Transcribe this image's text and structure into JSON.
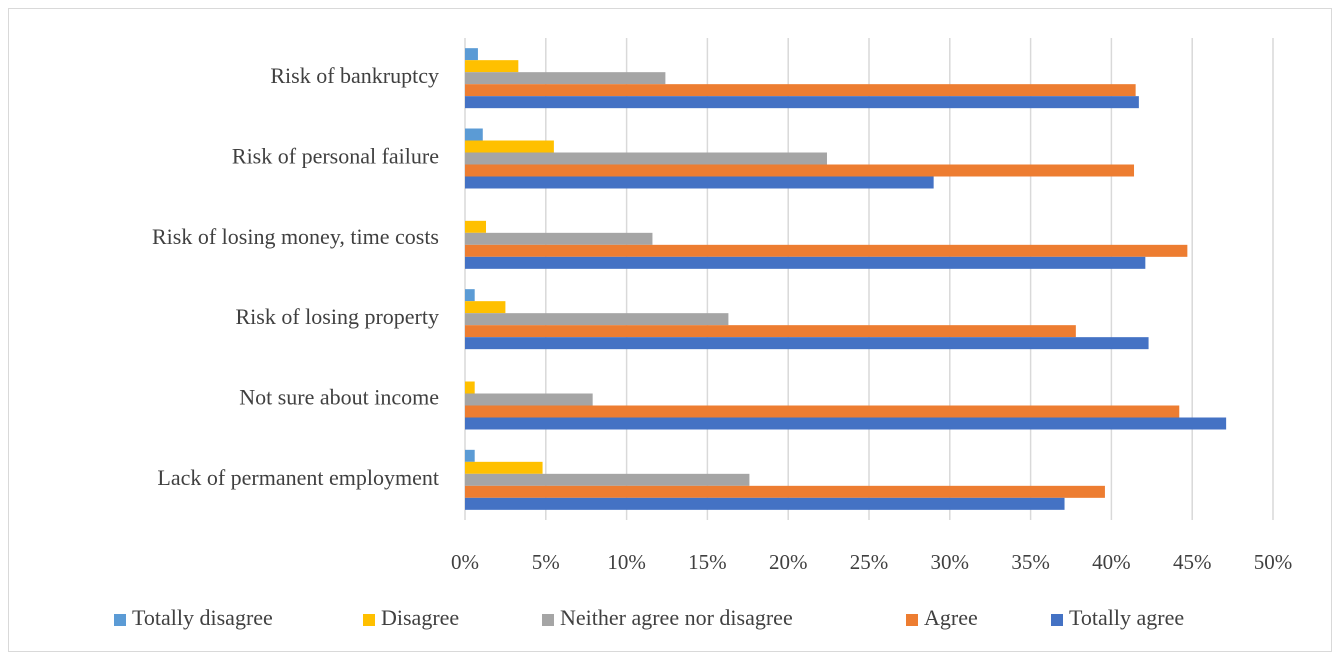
{
  "chart_data": {
    "type": "hbar",
    "categories": [
      "Risk of bankruptcy",
      "Risk of personal failure",
      "Risk of losing money, time costs",
      "Risk of losing property",
      "Not sure about income",
      "Lack of permanent employment"
    ],
    "series": [
      {
        "name": "Totally disagree",
        "color": "#5b9bd5",
        "values": [
          0.8,
          1.1,
          0,
          0.6,
          0,
          0.6
        ]
      },
      {
        "name": "Disagree",
        "color": "#ffc000",
        "values": [
          3.3,
          5.5,
          1.3,
          2.5,
          0.6,
          4.8
        ]
      },
      {
        "name": "Neither agree nor disagree",
        "color": "#a5a5a5",
        "values": [
          12.4,
          22.4,
          11.6,
          16.3,
          7.9,
          17.6
        ]
      },
      {
        "name": "Agree",
        "color": "#ed7d31",
        "values": [
          41.5,
          41.4,
          44.7,
          37.8,
          44.2,
          39.6
        ]
      },
      {
        "name": "Totally agree",
        "color": "#4472c4",
        "values": [
          41.7,
          29.0,
          42.1,
          42.3,
          47.1,
          37.1
        ]
      }
    ],
    "xlim": [
      0,
      50
    ],
    "xticks": [
      {
        "value": 0,
        "label": "0%"
      },
      {
        "value": 5,
        "label": "5%"
      },
      {
        "value": 10,
        "label": "10%"
      },
      {
        "value": 15,
        "label": "15%"
      },
      {
        "value": 20,
        "label": "20%"
      },
      {
        "value": 25,
        "label": "25%"
      },
      {
        "value": 30,
        "label": "30%"
      },
      {
        "value": 35,
        "label": "35%"
      },
      {
        "value": 40,
        "label": "40%"
      },
      {
        "value": 45,
        "label": "45%"
      },
      {
        "value": 50,
        "label": "50%"
      }
    ],
    "grid": true,
    "legend": "bottom"
  }
}
